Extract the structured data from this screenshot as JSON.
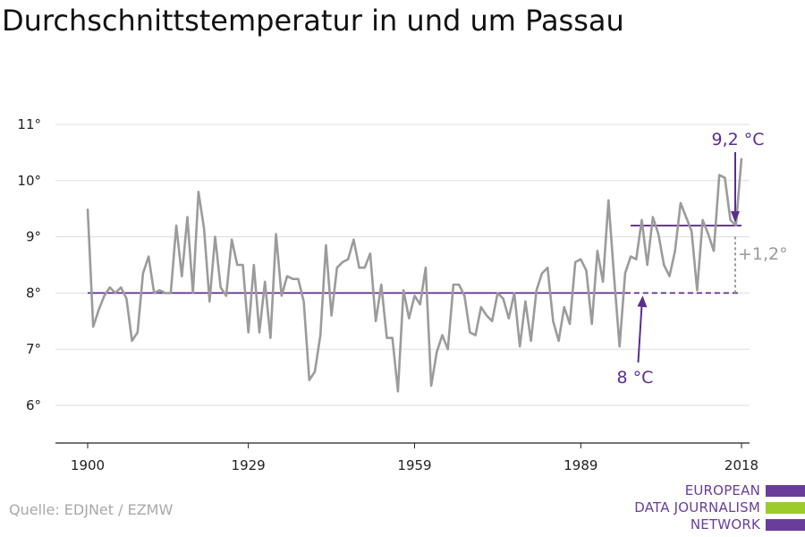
{
  "title": "Durchschnittstemperatur in und um Passau",
  "source": "Quelle: EDJNet / EZMW",
  "logo": {
    "lines": [
      "EUROPEAN",
      "DATA JOURNALISM",
      "NETWORK"
    ]
  },
  "colors": {
    "line": "#9b9b9b",
    "accent": "#5c2d91",
    "diff": "#9a9a9a",
    "logo_purple": "#6a3d9a",
    "logo_green": "#9ccc2b"
  },
  "chart_data": {
    "type": "line",
    "title": "Durchschnittstemperatur in und um Passau",
    "x_ticks": [
      "1900",
      "1929",
      "1959",
      "1989",
      "2018"
    ],
    "y_ticks": [
      "6°",
      "7°",
      "8°",
      "9°",
      "10°",
      "11°"
    ],
    "ylim": [
      5.4,
      11.3
    ],
    "xlim": [
      1900,
      2018
    ],
    "grid": true,
    "series": [
      {
        "x": [
          1900,
          1901,
          1902,
          1903,
          1904,
          1905,
          1906,
          1907,
          1908,
          1909,
          1910,
          1911,
          1912,
          1913,
          1914,
          1915,
          1916,
          1917,
          1918,
          1919,
          1920,
          1921,
          1922,
          1923,
          1924,
          1925,
          1926,
          1927,
          1928,
          1929,
          1930,
          1931,
          1932,
          1933,
          1934,
          1935,
          1936,
          1937,
          1938,
          1939,
          1940,
          1941,
          1942,
          1943,
          1944,
          1945,
          1946,
          1947,
          1948,
          1949,
          1950,
          1951,
          1952,
          1953,
          1954,
          1955,
          1956,
          1957,
          1958,
          1959,
          1960,
          1961,
          1962,
          1963,
          1964,
          1965,
          1966,
          1967,
          1968,
          1969,
          1970,
          1971,
          1972,
          1973,
          1974,
          1975,
          1976,
          1977,
          1978,
          1979,
          1980,
          1981,
          1982,
          1983,
          1984,
          1985,
          1986,
          1987,
          1988,
          1989,
          1990,
          1991,
          1992,
          1993,
          1994,
          1995,
          1996,
          1997,
          1998,
          1999,
          2000,
          2001,
          2002,
          2003,
          2004,
          2005,
          2006,
          2007,
          2008,
          2009,
          2010,
          2011,
          2012,
          2013,
          2014,
          2015,
          2016,
          2017,
          2018
        ],
        "y": [
          9.5,
          7.4,
          7.7,
          7.95,
          8.1,
          8.0,
          8.1,
          7.9,
          7.15,
          7.3,
          8.35,
          8.65,
          8.0,
          8.05,
          8.0,
          8.0,
          9.2,
          8.3,
          9.35,
          8.0,
          9.8,
          9.15,
          7.85,
          9.0,
          8.1,
          7.95,
          8.95,
          8.5,
          8.5,
          7.3,
          8.5,
          7.3,
          8.2,
          7.2,
          9.05,
          7.95,
          8.3,
          8.25,
          8.25,
          7.85,
          6.45,
          6.6,
          7.25,
          8.85,
          7.6,
          8.45,
          8.55,
          8.6,
          8.95,
          8.45,
          8.45,
          8.7,
          7.5,
          8.15,
          7.2,
          7.2,
          6.25,
          8.05,
          7.55,
          7.95,
          7.8,
          8.45,
          6.35,
          6.95,
          7.25,
          7.0,
          8.15,
          8.15,
          7.95,
          7.3,
          7.25,
          7.75,
          7.6,
          7.5,
          8.0,
          7.9,
          7.55,
          8.0,
          7.05,
          7.85,
          7.15,
          8.05,
          8.35,
          8.45,
          7.5,
          7.15,
          7.75,
          7.45,
          8.55,
          8.6,
          8.4,
          7.45,
          8.75,
          8.2,
          9.65,
          8.3,
          7.05,
          8.35,
          8.65,
          8.6,
          9.3,
          8.5,
          9.35,
          9.05,
          8.5,
          8.3,
          8.75,
          9.6,
          9.35,
          9.1,
          8.05,
          9.3,
          9.05,
          8.75,
          10.1,
          10.05,
          9.3,
          9.2,
          10.4
        ]
      }
    ],
    "reference_lines": [
      {
        "from": 1900,
        "to": 2018,
        "y": 8.0
      },
      {
        "from": 1998,
        "to": 2018,
        "y": 9.2
      }
    ],
    "annotations": {
      "high_label": "9,2 °C",
      "base_label": "8 °C",
      "diff_label": "+1,2°"
    }
  }
}
